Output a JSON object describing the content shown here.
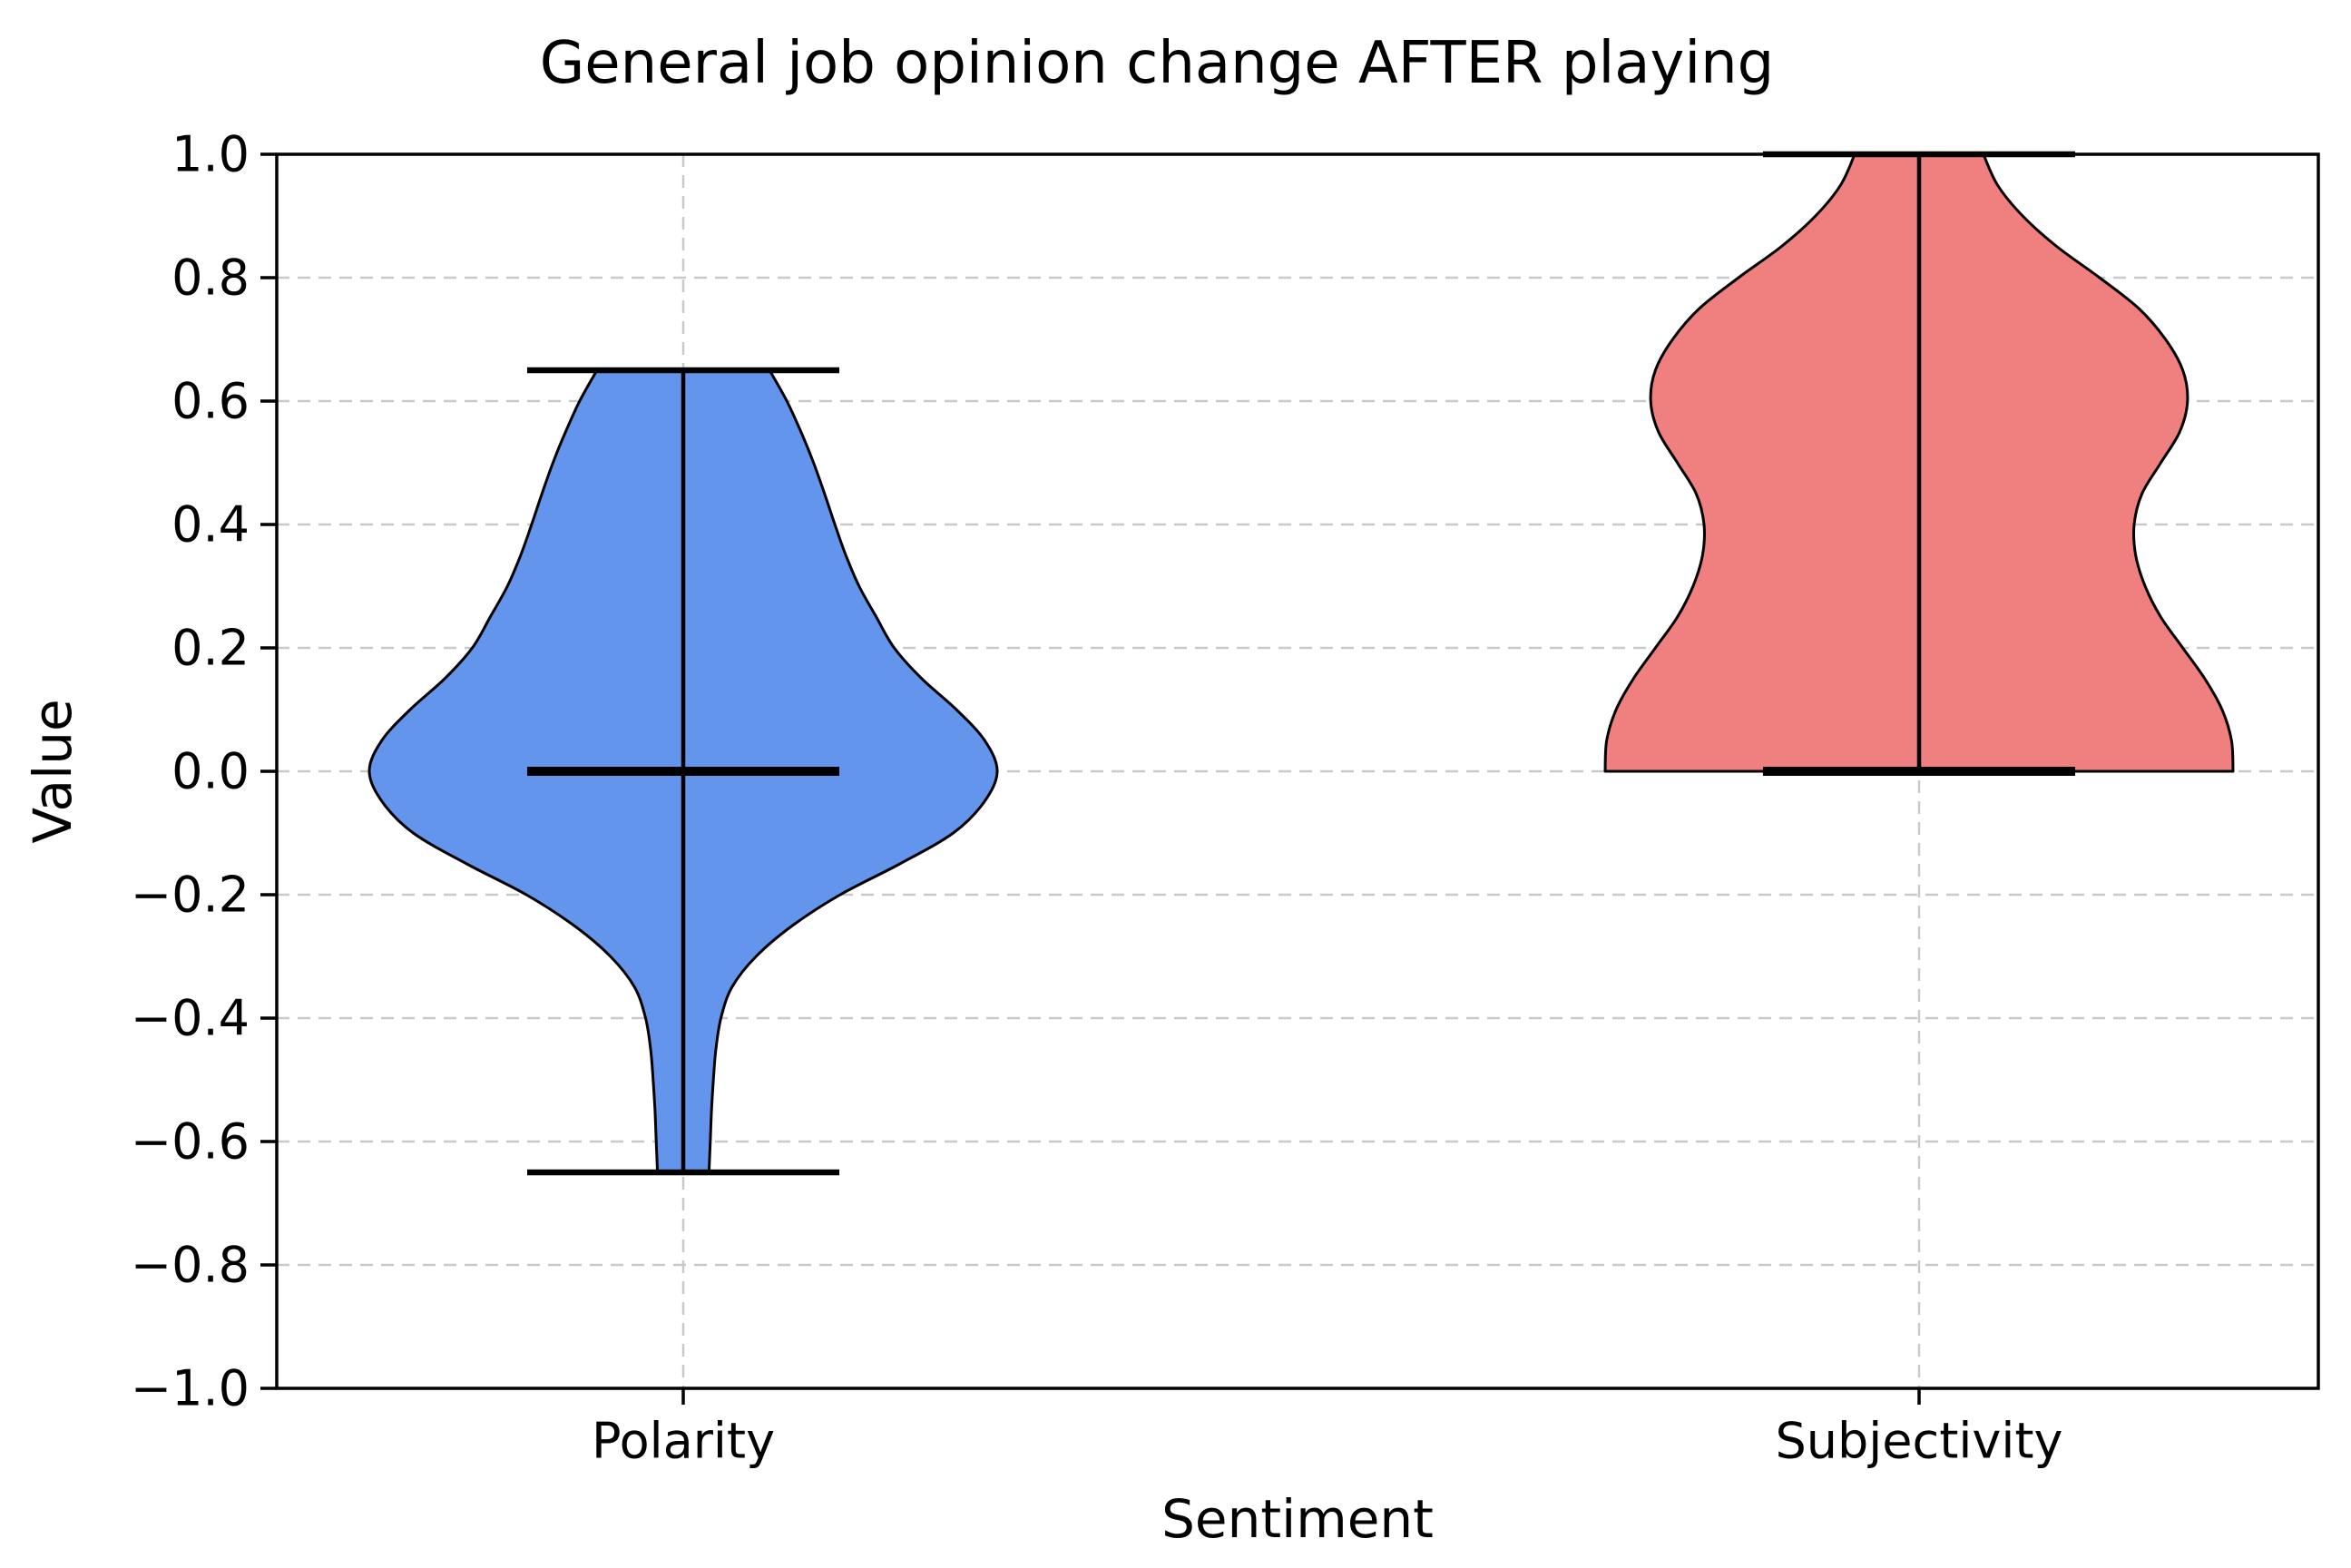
{
  "chart_data": {
    "type": "violin",
    "title": "General job opinion change AFTER playing",
    "xlabel": "Sentiment",
    "ylabel": "Value",
    "ylim": [
      -1.0,
      1.0
    ],
    "grid": true,
    "grid_style": "dashed",
    "grid_color": "#c9c9c9",
    "background_color": "#ffffff",
    "categories": [
      "Polarity",
      "Subjectivity"
    ],
    "yticks": [
      {
        "value": 1.0,
        "label": "1.0"
      },
      {
        "value": 0.8,
        "label": "0.8"
      },
      {
        "value": 0.6,
        "label": "0.6"
      },
      {
        "value": 0.4,
        "label": "0.4"
      },
      {
        "value": 0.2,
        "label": "0.2"
      },
      {
        "value": 0.0,
        "label": "0.0"
      },
      {
        "value": -0.2,
        "label": "−0.2"
      },
      {
        "value": -0.4,
        "label": "−0.4"
      },
      {
        "value": -0.6,
        "label": "−0.6"
      },
      {
        "value": -0.8,
        "label": "−0.8"
      },
      {
        "value": -1.0,
        "label": "−1.0"
      }
    ],
    "series": [
      {
        "name": "Polarity",
        "fill_color": "#6495ED",
        "edge_color": "#000000",
        "min": -0.65,
        "max": 0.65,
        "median": 0.0,
        "profile": [
          [
            0.65,
            0.275
          ],
          [
            0.6,
            0.33
          ],
          [
            0.55,
            0.375
          ],
          [
            0.5,
            0.415
          ],
          [
            0.45,
            0.45
          ],
          [
            0.4,
            0.483
          ],
          [
            0.35,
            0.518
          ],
          [
            0.3,
            0.56
          ],
          [
            0.25,
            0.615
          ],
          [
            0.2,
            0.672
          ],
          [
            0.15,
            0.76
          ],
          [
            0.1,
            0.87
          ],
          [
            0.05,
            0.96
          ],
          [
            0.0,
            1.0
          ],
          [
            -0.05,
            0.958
          ],
          [
            -0.1,
            0.86
          ],
          [
            -0.15,
            0.69
          ],
          [
            -0.2,
            0.5
          ],
          [
            -0.25,
            0.348
          ],
          [
            -0.3,
            0.232
          ],
          [
            -0.35,
            0.155
          ],
          [
            -0.4,
            0.12
          ],
          [
            -0.45,
            0.104
          ],
          [
            -0.5,
            0.096
          ],
          [
            -0.55,
            0.09
          ],
          [
            -0.6,
            0.086
          ],
          [
            -0.65,
            0.082
          ]
        ]
      },
      {
        "name": "Subjectivity",
        "fill_color": "#F08080",
        "edge_color": "#000000",
        "min": 0.0,
        "max": 1.0,
        "median": 0.0,
        "profile": [
          [
            1.0,
            0.205
          ],
          [
            0.95,
            0.25
          ],
          [
            0.9,
            0.33
          ],
          [
            0.85,
            0.44
          ],
          [
            0.8,
            0.575
          ],
          [
            0.75,
            0.7
          ],
          [
            0.7,
            0.785
          ],
          [
            0.65,
            0.84
          ],
          [
            0.6,
            0.855
          ],
          [
            0.55,
            0.83
          ],
          [
            0.5,
            0.77
          ],
          [
            0.45,
            0.71
          ],
          [
            0.4,
            0.685
          ],
          [
            0.35,
            0.69
          ],
          [
            0.3,
            0.72
          ],
          [
            0.25,
            0.77
          ],
          [
            0.2,
            0.84
          ],
          [
            0.15,
            0.91
          ],
          [
            0.1,
            0.965
          ],
          [
            0.05,
            0.995
          ],
          [
            0.0,
            1.0
          ]
        ]
      }
    ]
  }
}
